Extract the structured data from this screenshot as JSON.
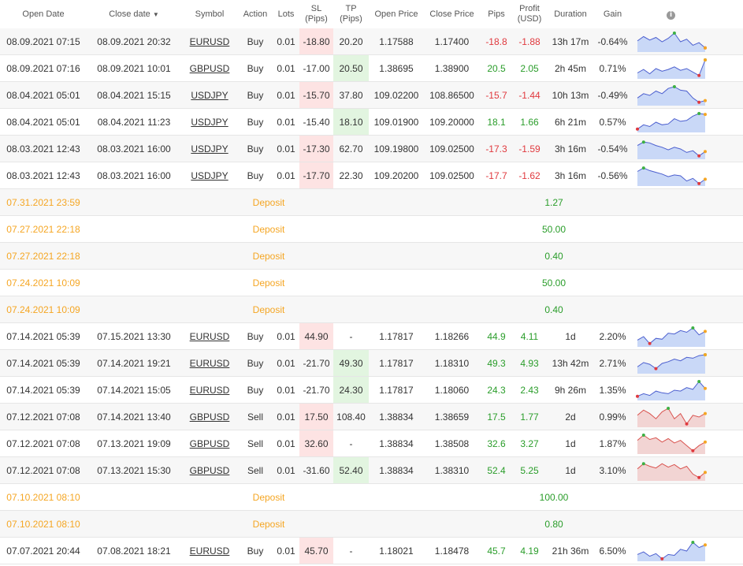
{
  "headers": {
    "open_date": "Open Date",
    "close_date": "Close date",
    "sort_arrow": "▼",
    "symbol": "Symbol",
    "action": "Action",
    "lots": "Lots",
    "sl": [
      "SL",
      "(Pips)"
    ],
    "tp": [
      "TP",
      "(Pips)"
    ],
    "open_price": "Open Price",
    "close_price": "Close Price",
    "pips": "Pips",
    "profit": [
      "Profit",
      "(USD)"
    ],
    "duration": "Duration",
    "gain": "Gain",
    "info_icon": "info-icon"
  },
  "colors": {
    "positive": "#2a9d2a",
    "negative": "#e0393e",
    "deposit": "#f5a623",
    "sl_highlight": "#fde3e3",
    "tp_highlight": "#e2f5e0",
    "spark_buy_line": "#4c5fcf",
    "spark_buy_fill": "#c9d8f7",
    "spark_sell_line": "#d9534f",
    "spark_sell_fill": "#f2d4d3"
  },
  "rows": [
    {
      "type": "trade",
      "open": "08.09.2021 07:15",
      "close": "08.09.2021 20:32",
      "symbol": "EURUSD",
      "action": "Buy",
      "lots": "0.01",
      "sl": "-18.80",
      "tp": "20.20",
      "hit": "sl",
      "open_price": "1.17588",
      "close_price": "1.17400",
      "pips": "-18.8",
      "profit": "-1.88",
      "duration": "13h 17m",
      "gain": "-0.64%",
      "spark": [
        0.55,
        0.8,
        0.6,
        0.75,
        0.5,
        0.7,
        1.0,
        0.5,
        0.65,
        0.3,
        0.45,
        0.15
      ],
      "kind": "buy"
    },
    {
      "type": "trade",
      "open": "08.09.2021 07:16",
      "close": "08.09.2021 10:01",
      "symbol": "GBPUSD",
      "action": "Buy",
      "lots": "0.01",
      "sl": "-17.00",
      "tp": "20.50",
      "hit": "tp",
      "open_price": "1.38695",
      "close_price": "1.38900",
      "pips": "20.5",
      "profit": "2.05",
      "duration": "2h 45m",
      "gain": "0.71%",
      "spark": [
        0.25,
        0.45,
        0.2,
        0.5,
        0.35,
        0.45,
        0.6,
        0.4,
        0.5,
        0.3,
        0.1,
        1.0
      ],
      "kind": "buy"
    },
    {
      "type": "trade",
      "open": "08.04.2021 05:01",
      "close": "08.04.2021 15:15",
      "symbol": "USDJPY",
      "action": "Buy",
      "lots": "0.01",
      "sl": "-15.70",
      "tp": "37.80",
      "hit": "sl",
      "open_price": "109.02200",
      "close_price": "108.86500",
      "pips": "-15.7",
      "profit": "-1.44",
      "duration": "10h 13m",
      "gain": "-0.49%",
      "spark": [
        0.35,
        0.6,
        0.5,
        0.75,
        0.6,
        0.9,
        1.0,
        0.8,
        0.75,
        0.35,
        0.1,
        0.2
      ],
      "kind": "buy"
    },
    {
      "type": "trade",
      "open": "08.04.2021 05:01",
      "close": "08.04.2021 11:23",
      "symbol": "USDJPY",
      "action": "Buy",
      "lots": "0.01",
      "sl": "-15.40",
      "tp": "18.10",
      "hit": "tp",
      "open_price": "109.01900",
      "close_price": "109.20000",
      "pips": "18.1",
      "profit": "1.66",
      "duration": "6h 21m",
      "gain": "0.57%",
      "spark": [
        0.1,
        0.35,
        0.25,
        0.5,
        0.35,
        0.4,
        0.7,
        0.55,
        0.6,
        0.85,
        1.0,
        0.95
      ],
      "kind": "buy"
    },
    {
      "type": "trade",
      "open": "08.03.2021 12:43",
      "close": "08.03.2021 16:00",
      "symbol": "USDJPY",
      "action": "Buy",
      "lots": "0.01",
      "sl": "-17.30",
      "tp": "62.70",
      "hit": "sl",
      "open_price": "109.19800",
      "close_price": "109.02500",
      "pips": "-17.3",
      "profit": "-1.59",
      "duration": "3h 16m",
      "gain": "-0.54%",
      "spark": [
        0.7,
        0.9,
        0.85,
        0.7,
        0.6,
        0.45,
        0.6,
        0.5,
        0.3,
        0.4,
        0.1,
        0.35
      ],
      "kind": "buy"
    },
    {
      "type": "trade",
      "open": "08.03.2021 12:43",
      "close": "08.03.2021 16:00",
      "symbol": "USDJPY",
      "action": "Buy",
      "lots": "0.01",
      "sl": "-17.70",
      "tp": "22.30",
      "hit": "sl",
      "open_price": "109.20200",
      "close_price": "109.02500",
      "pips": "-17.7",
      "profit": "-1.62",
      "duration": "3h 16m",
      "gain": "-0.56%",
      "spark": [
        0.75,
        0.95,
        0.8,
        0.7,
        0.6,
        0.45,
        0.55,
        0.5,
        0.2,
        0.35,
        0.05,
        0.3
      ],
      "kind": "buy"
    },
    {
      "type": "deposit",
      "date": "07.31.2021 23:59",
      "label": "Deposit",
      "amount": "1.27"
    },
    {
      "type": "deposit",
      "date": "07.27.2021 22:18",
      "label": "Deposit",
      "amount": "50.00"
    },
    {
      "type": "deposit",
      "date": "07.27.2021 22:18",
      "label": "Deposit",
      "amount": "0.40"
    },
    {
      "type": "deposit",
      "date": "07.24.2021 10:09",
      "label": "Deposit",
      "amount": "50.00"
    },
    {
      "type": "deposit",
      "date": "07.24.2021 10:09",
      "label": "Deposit",
      "amount": "0.40"
    },
    {
      "type": "trade",
      "open": "07.14.2021 05:39",
      "close": "07.15.2021 13:30",
      "symbol": "EURUSD",
      "action": "Buy",
      "lots": "0.01",
      "sl": "44.90",
      "tp": "-",
      "hit": "sl",
      "open_price": "1.17817",
      "close_price": "1.18266",
      "pips": "44.9",
      "profit": "4.11",
      "duration": "1d",
      "gain": "2.20%",
      "spark": [
        0.3,
        0.5,
        0.1,
        0.4,
        0.35,
        0.7,
        0.65,
        0.85,
        0.75,
        1.0,
        0.6,
        0.8
      ],
      "kind": "buy"
    },
    {
      "type": "trade",
      "open": "07.14.2021 05:39",
      "close": "07.14.2021 19:21",
      "symbol": "EURUSD",
      "action": "Buy",
      "lots": "0.01",
      "sl": "-21.70",
      "tp": "49.30",
      "hit": "tp",
      "open_price": "1.17817",
      "close_price": "1.18310",
      "pips": "49.3",
      "profit": "4.93",
      "duration": "13h 42m",
      "gain": "2.71%",
      "spark": [
        0.3,
        0.55,
        0.45,
        0.2,
        0.5,
        0.6,
        0.75,
        0.65,
        0.85,
        0.8,
        0.95,
        1.0
      ],
      "kind": "buy"
    },
    {
      "type": "trade",
      "open": "07.14.2021 05:39",
      "close": "07.14.2021 15:05",
      "symbol": "EURUSD",
      "action": "Buy",
      "lots": "0.01",
      "sl": "-21.70",
      "tp": "24.30",
      "hit": "tp",
      "open_price": "1.17817",
      "close_price": "1.18060",
      "pips": "24.3",
      "profit": "2.43",
      "duration": "9h 26m",
      "gain": "1.35%",
      "spark": [
        0.15,
        0.3,
        0.2,
        0.45,
        0.35,
        0.3,
        0.5,
        0.45,
        0.65,
        0.55,
        1.0,
        0.6
      ],
      "kind": "buy"
    },
    {
      "type": "trade",
      "open": "07.12.2021 07:08",
      "close": "07.14.2021 13:40",
      "symbol": "GBPUSD",
      "action": "Sell",
      "lots": "0.01",
      "sl": "17.50",
      "tp": "108.40",
      "hit": "sl",
      "open_price": "1.38834",
      "close_price": "1.38659",
      "pips": "17.5",
      "profit": "1.77",
      "duration": "2d",
      "gain": "0.99%",
      "spark": [
        0.6,
        0.9,
        0.7,
        0.4,
        0.8,
        1.0,
        0.4,
        0.7,
        0.1,
        0.6,
        0.5,
        0.7
      ],
      "kind": "sell"
    },
    {
      "type": "trade",
      "open": "07.12.2021 07:08",
      "close": "07.13.2021 19:09",
      "symbol": "GBPUSD",
      "action": "Sell",
      "lots": "0.01",
      "sl": "32.60",
      "tp": "-",
      "hit": "sl",
      "open_price": "1.38834",
      "close_price": "1.38508",
      "pips": "32.6",
      "profit": "3.27",
      "duration": "1d",
      "gain": "1.87%",
      "spark": [
        0.7,
        1.0,
        0.75,
        0.85,
        0.6,
        0.8,
        0.55,
        0.7,
        0.4,
        0.1,
        0.4,
        0.6
      ],
      "kind": "sell"
    },
    {
      "type": "trade",
      "open": "07.12.2021 07:08",
      "close": "07.13.2021 15:30",
      "symbol": "GBPUSD",
      "action": "Sell",
      "lots": "0.01",
      "sl": "-31.60",
      "tp": "52.40",
      "hit": "tp",
      "open_price": "1.38834",
      "close_price": "1.38310",
      "pips": "52.4",
      "profit": "5.25",
      "duration": "1d",
      "gain": "3.10%",
      "spark": [
        0.6,
        0.9,
        0.75,
        0.65,
        0.9,
        0.7,
        0.85,
        0.6,
        0.75,
        0.3,
        0.1,
        0.4
      ],
      "kind": "sell"
    },
    {
      "type": "deposit",
      "date": "07.10.2021 08:10",
      "label": "Deposit",
      "amount": "100.00"
    },
    {
      "type": "deposit",
      "date": "07.10.2021 08:10",
      "label": "Deposit",
      "amount": "0.80"
    },
    {
      "type": "trade",
      "open": "07.07.2021 20:44",
      "close": "07.08.2021 18:21",
      "symbol": "EURUSD",
      "action": "Buy",
      "lots": "0.01",
      "sl": "45.70",
      "tp": "-",
      "hit": "sl",
      "open_price": "1.18021",
      "close_price": "1.18478",
      "pips": "45.7",
      "profit": "4.19",
      "duration": "21h 36m",
      "gain": "6.50%",
      "spark": [
        0.3,
        0.45,
        0.2,
        0.35,
        0.05,
        0.3,
        0.25,
        0.6,
        0.5,
        1.0,
        0.7,
        0.85
      ],
      "kind": "buy"
    }
  ]
}
